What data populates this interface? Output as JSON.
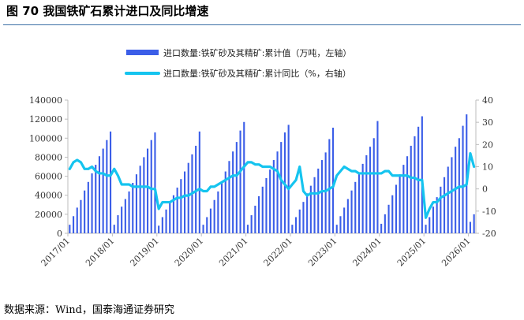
{
  "figure": {
    "title": "图 70 我国铁矿石累计进口及同比增速",
    "source": "数据来源：Wind，国泰海通证券研究"
  },
  "colors": {
    "bars": "#3b5ee8",
    "line": "#15c4ef",
    "axis": "#bdbdbd"
  },
  "chart_data": {
    "type": "bar",
    "legend_position": "top",
    "grid": false,
    "x_tick_labels": [
      "2017/01",
      "2018/01",
      "2019/01",
      "2020/01",
      "2021/01",
      "2022/01",
      "2023/01",
      "2024/01",
      "2025/01",
      "2026/01"
    ],
    "y_left": {
      "ylim": [
        0,
        140000
      ],
      "ticks": [
        0,
        20000,
        40000,
        60000,
        80000,
        100000,
        120000,
        140000
      ]
    },
    "y_right": {
      "ylim": [
        -20,
        40
      ],
      "ticks": [
        -20,
        -10,
        0,
        10,
        20,
        30,
        40
      ]
    },
    "series": [
      {
        "name": "进口数量:铁矿砂及其精矿:累计值（万吨，左轴）",
        "type": "bar",
        "axis": "left",
        "values": [
          9000,
          18000,
          27000,
          35000,
          45000,
          54000,
          63000,
          72000,
          81000,
          89000,
          98000,
          107000,
          9000,
          19000,
          28000,
          36000,
          44000,
          53000,
          62000,
          71000,
          80000,
          89000,
          98000,
          106000,
          8000,
          17000,
          25000,
          32000,
          40000,
          48000,
          57000,
          65000,
          74000,
          83000,
          92000,
          107000,
          9000,
          17000,
          26000,
          35000,
          44000,
          54000,
          65000,
          76000,
          86000,
          96000,
          108000,
          117000,
          9000,
          19000,
          29000,
          39000,
          49000,
          58000,
          67000,
          77000,
          86000,
          96000,
          106000,
          114000,
          9000,
          17000,
          25000,
          33000,
          42000,
          50000,
          59000,
          68000,
          77000,
          85000,
          99000,
          111000,
          9000,
          18000,
          27000,
          36000,
          45000,
          54000,
          63000,
          73000,
          82000,
          91000,
          100000,
          118000,
          10000,
          20000,
          30000,
          40000,
          51000,
          62000,
          72000,
          81000,
          92000,
          102000,
          112000,
          123000,
          9000,
          17000,
          28000,
          38000,
          49000,
          59000,
          70000,
          80000,
          91000,
          100000,
          113000,
          125000,
          12000,
          20000
        ]
      },
      {
        "name": "进口数量:铁矿砂及其精矿:累计同比（%，右轴）",
        "type": "line",
        "axis": "right",
        "values": [
          9,
          12,
          13,
          12,
          9,
          9,
          10,
          8,
          7,
          7,
          6,
          6,
          9,
          6,
          2,
          2,
          2,
          1,
          1,
          1,
          1,
          1,
          0,
          0,
          -9,
          -6,
          -6,
          -6,
          -5,
          -4,
          -4,
          -3,
          -3,
          -2,
          -1,
          0,
          -1,
          -1,
          1,
          1,
          2,
          3,
          4,
          5,
          6,
          6,
          8,
          10,
          12,
          12,
          11,
          11,
          10,
          10,
          10,
          9,
          8,
          4,
          2,
          0,
          2,
          4,
          10,
          -1,
          -3,
          -2,
          -2,
          -2,
          -1,
          -1,
          0,
          1,
          6,
          8,
          10,
          9,
          8,
          8,
          7,
          7,
          7,
          7,
          7,
          7,
          7,
          8,
          8,
          6,
          6,
          6,
          6,
          6,
          5,
          5,
          4,
          4,
          -13,
          -9,
          -6,
          -6,
          -4,
          -3,
          -2,
          -1,
          0,
          1,
          1,
          2,
          16,
          10
        ]
      }
    ]
  }
}
